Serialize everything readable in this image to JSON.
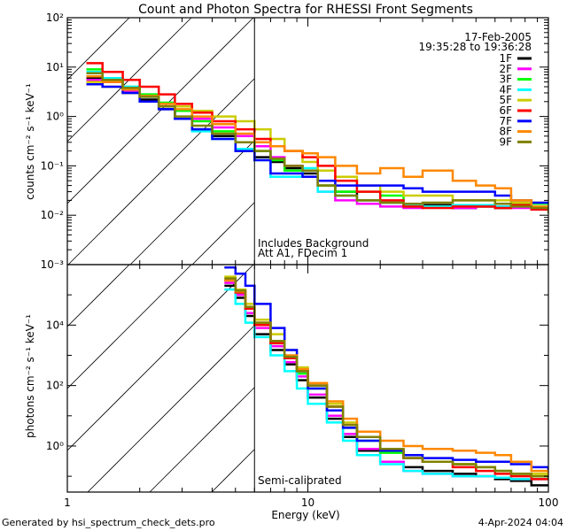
{
  "chart_data": [
    {
      "type": "line",
      "panel": "top",
      "title": "Count and Photon Spectra for RHESSI Front Segments",
      "xlabel": "",
      "ylabel": "counts cm⁻² s⁻¹ keV⁻¹",
      "xscale": "log",
      "yscale": "log",
      "xlim": [
        1,
        100
      ],
      "ylim": [
        0.001,
        100
      ],
      "x_ticks": [
        "1",
        "10",
        "100"
      ],
      "y_ticks": [
        "10⁻³",
        "10⁻²",
        "10⁻¹",
        "10⁰",
        "10¹",
        "10²"
      ],
      "y_tick_values": [
        0.001,
        0.01,
        0.1,
        1,
        10,
        100
      ],
      "grid": false,
      "legend_position": "top-right",
      "annotations": [
        "17-Feb-2005",
        "19:35:28 to 19:36:28",
        "Includes Background",
        "Att A1, FDecim 1"
      ],
      "vertical_line_x": 6,
      "hatched_region": [
        1,
        6
      ],
      "x": [
        1.2,
        1.4,
        1.7,
        2.0,
        2.4,
        2.8,
        3.3,
        4.0,
        5.0,
        6.0,
        7.0,
        8.0,
        9.5,
        11,
        13,
        16,
        20,
        25,
        30,
        40,
        50,
        60,
        70,
        85,
        100
      ],
      "series": [
        {
          "name": "1F",
          "color": "#000000",
          "values": [
            6.0,
            5.0,
            3.0,
            2.2,
            1.4,
            0.9,
            0.55,
            0.4,
            0.2,
            0.15,
            0.12,
            0.09,
            0.07,
            0.04,
            0.03,
            0.02,
            0.018,
            0.015,
            0.016,
            0.014,
            0.015,
            0.014,
            0.015,
            0.014,
            0.013
          ]
        },
        {
          "name": "2F",
          "color": "#ff00ff",
          "values": [
            5.5,
            5.0,
            3.2,
            2.6,
            1.8,
            1.3,
            0.9,
            0.6,
            0.4,
            0.25,
            0.15,
            0.1,
            0.08,
            0.03,
            0.02,
            0.017,
            0.015,
            0.014,
            0.015,
            0.014,
            0.015,
            0.015,
            0.014,
            0.014,
            0.015
          ]
        },
        {
          "name": "3F",
          "color": "#00ff00",
          "values": [
            9.0,
            6.0,
            4.0,
            2.8,
            1.9,
            1.3,
            0.8,
            0.5,
            0.3,
            0.2,
            0.13,
            0.08,
            0.06,
            0.04,
            0.03,
            0.03,
            0.025,
            0.015,
            0.015,
            0.016,
            0.015,
            0.017,
            0.017,
            0.017,
            0.016
          ]
        },
        {
          "name": "4F",
          "color": "#00ffff",
          "values": [
            8.0,
            6.0,
            4.0,
            2.5,
            1.6,
            0.9,
            0.5,
            0.35,
            0.22,
            0.13,
            0.06,
            0.06,
            0.09,
            0.03,
            0.025,
            0.02,
            0.018,
            0.016,
            0.015,
            0.016,
            0.016,
            0.015,
            0.015,
            0.014,
            0.014
          ]
        },
        {
          "name": "5F",
          "color": "#cccc00",
          "values": [
            5.0,
            4.0,
            3.0,
            2.0,
            1.8,
            1.6,
            1.3,
            1.0,
            0.8,
            0.55,
            0.35,
            0.2,
            0.12,
            0.08,
            0.06,
            0.04,
            0.03,
            0.025,
            0.025,
            0.02,
            0.02,
            0.02,
            0.018,
            0.018,
            0.017
          ]
        },
        {
          "name": "6F",
          "color": "#ff0000",
          "values": [
            12.0,
            8.0,
            5.5,
            4.0,
            2.8,
            1.8,
            1.2,
            0.8,
            0.55,
            0.35,
            0.25,
            0.2,
            0.15,
            0.1,
            0.05,
            0.03,
            0.02,
            0.015,
            0.014,
            0.015,
            0.015,
            0.014,
            0.016,
            0.013,
            0.013
          ]
        },
        {
          "name": "7F",
          "color": "#0000ff",
          "values": [
            4.5,
            4.0,
            3.0,
            2.0,
            1.4,
            0.9,
            0.55,
            0.35,
            0.2,
            0.13,
            0.07,
            0.07,
            0.06,
            0.05,
            0.04,
            0.04,
            0.04,
            0.035,
            0.03,
            0.03,
            0.03,
            0.025,
            0.02,
            0.018,
            0.018
          ]
        },
        {
          "name": "8F",
          "color": "#ff8800",
          "values": [
            6.5,
            5.0,
            3.5,
            2.6,
            1.8,
            1.4,
            1.0,
            0.7,
            0.45,
            0.3,
            0.25,
            0.2,
            0.18,
            0.15,
            0.1,
            0.07,
            0.09,
            0.06,
            0.08,
            0.05,
            0.04,
            0.035,
            0.02,
            0.015,
            0.015
          ]
        },
        {
          "name": "9F",
          "color": "#808000",
          "values": [
            7.5,
            5.5,
            3.8,
            2.5,
            1.6,
            1.0,
            0.65,
            0.45,
            0.3,
            0.2,
            0.14,
            0.1,
            0.08,
            0.04,
            0.025,
            0.02,
            0.018,
            0.017,
            0.018,
            0.02,
            0.02,
            0.017,
            0.015,
            0.014,
            0.011
          ]
        }
      ]
    },
    {
      "type": "line",
      "panel": "bottom",
      "title": "",
      "xlabel": "Energy (keV)",
      "ylabel": "photons cm⁻² s⁻¹ keV⁻¹",
      "xscale": "log",
      "yscale": "log",
      "xlim": [
        1,
        100
      ],
      "ylim": [
        0.03,
        1000000
      ],
      "x_ticks": [
        "1",
        "10",
        "100"
      ],
      "y_ticks": [
        "10⁰",
        "10²",
        "10⁴"
      ],
      "y_tick_values": [
        1,
        100,
        10000
      ],
      "grid": false,
      "annotations": [
        "Semi-calibrated"
      ],
      "vertical_line_x": 6,
      "hatched_region": [
        1,
        6
      ],
      "x": [
        4.5,
        5.0,
        5.5,
        6.0,
        7.0,
        8.0,
        9.0,
        10,
        12,
        14,
        16,
        20,
        25,
        30,
        40,
        50,
        60,
        70,
        85,
        100
      ],
      "series": [
        {
          "name": "1F",
          "color": "#000000",
          "values": [
            200000,
            80000,
            20000,
            5000,
            1500,
            500,
            150,
            40,
            8,
            2,
            0.7,
            0.3,
            0.2,
            0.15,
            0.12,
            0.1,
            0.08,
            0.07,
            0.05,
            0.05
          ]
        },
        {
          "name": "2F",
          "color": "#ff00ff",
          "values": [
            250000,
            100000,
            25000,
            8000,
            2000,
            600,
            200,
            50,
            10,
            2.5,
            0.8,
            0.3,
            0.15,
            0.12,
            0.1,
            0.1,
            0.09,
            0.08,
            0.08,
            0.08
          ]
        },
        {
          "name": "3F",
          "color": "#00ff00",
          "values": [
            300000,
            120000,
            35000,
            10000,
            2500,
            800,
            250,
            80,
            15,
            4,
            1.5,
            0.6,
            0.4,
            0.3,
            0.25,
            0.2,
            0.15,
            0.12,
            0.1,
            0.1
          ]
        },
        {
          "name": "4F",
          "color": "#00ffff",
          "values": [
            150000,
            50000,
            12000,
            4000,
            1000,
            300,
            80,
            25,
            6,
            1.5,
            0.5,
            0.25,
            0.15,
            0.12,
            0.1,
            0.1,
            0.09,
            0.08,
            0.08,
            0.08
          ]
        },
        {
          "name": "5F",
          "color": "#cccc00",
          "values": [
            400000,
            150000,
            50000,
            15000,
            5000,
            1500,
            400,
            120,
            25,
            6,
            2,
            0.8,
            0.4,
            0.3,
            0.25,
            0.2,
            0.15,
            0.12,
            0.12,
            0.1
          ]
        },
        {
          "name": "6F",
          "color": "#ff0000",
          "values": [
            300000,
            120000,
            35000,
            10000,
            2500,
            800,
            300,
            100,
            20,
            5,
            2,
            0.7,
            0.4,
            0.3,
            0.2,
            0.15,
            0.12,
            0.1,
            0.08,
            0.08
          ]
        },
        {
          "name": "7F",
          "color": "#0000ff",
          "values": [
            800000,
            500000,
            200000,
            50000,
            8000,
            1500,
            300,
            80,
            15,
            4,
            1.5,
            0.7,
            0.5,
            0.4,
            0.35,
            0.3,
            0.3,
            0.25,
            0.2,
            0.15
          ]
        },
        {
          "name": "8F",
          "color": "#ff8800",
          "values": [
            300000,
            130000,
            40000,
            12000,
            3000,
            1000,
            350,
            120,
            30,
            8,
            3,
            1.5,
            1.0,
            0.8,
            0.7,
            0.6,
            0.5,
            0.3,
            0.15,
            0.12
          ]
        },
        {
          "name": "9F",
          "color": "#808000",
          "values": [
            350000,
            140000,
            40000,
            12000,
            3000,
            900,
            300,
            100,
            20,
            5,
            2,
            0.8,
            0.4,
            0.3,
            0.25,
            0.2,
            0.15,
            0.12,
            0.1,
            0.08
          ]
        }
      ]
    }
  ],
  "footer": {
    "generated_by": "Generated by hsi_spectrum_check_dets.pro",
    "timestamp": "4-Apr-2024 04:04"
  }
}
